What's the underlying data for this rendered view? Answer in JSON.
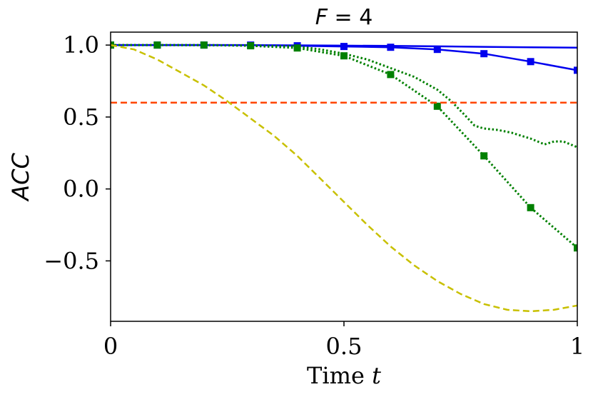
{
  "chart_data": {
    "type": "line",
    "title": "F = 4",
    "title_var": "F",
    "title_eq": " = 4",
    "xlabel": "Time t",
    "xlabel_text": "Time ",
    "xlabel_var": "t",
    "ylabel": "ACC",
    "xlim": [
      0,
      1
    ],
    "ylim": [
      -0.92,
      1.09
    ],
    "xticks": [
      {
        "value": 0,
        "label": "0"
      },
      {
        "value": 0.5,
        "label": "0.5"
      },
      {
        "value": 1,
        "label": "1"
      }
    ],
    "yticks": [
      {
        "value": 1.0,
        "label": "1.0"
      },
      {
        "value": 0.5,
        "label": "0.5"
      },
      {
        "value": 0.0,
        "label": "0.0"
      },
      {
        "value": -0.5,
        "label": "−0.5"
      }
    ],
    "grid": false,
    "series": [
      {
        "name": "blue-solid-upper",
        "color": "#0000ee",
        "style": "solid",
        "markers": false,
        "x": [
          0,
          0.1,
          0.2,
          0.3,
          0.4,
          0.5,
          0.6,
          0.7,
          0.8,
          0.9,
          1.0
        ],
        "y": [
          1.0,
          1.0,
          1.0,
          0.999,
          0.998,
          0.996,
          0.994,
          0.991,
          0.988,
          0.985,
          0.982
        ]
      },
      {
        "name": "blue-solid-squares",
        "color": "#0000ee",
        "style": "solid",
        "markers": true,
        "x": [
          0,
          0.1,
          0.2,
          0.3,
          0.4,
          0.5,
          0.6,
          0.7,
          0.8,
          0.9,
          1.0
        ],
        "y": [
          1.0,
          1.0,
          1.0,
          1.0,
          0.995,
          0.99,
          0.985,
          0.97,
          0.94,
          0.885,
          0.825
        ]
      },
      {
        "name": "green-dotted-squares",
        "color": "#008000",
        "style": "dotted",
        "markers": true,
        "x": [
          0,
          0.1,
          0.2,
          0.3,
          0.4,
          0.5,
          0.6,
          0.7,
          0.8,
          0.9,
          1.0
        ],
        "y": [
          1.0,
          1.0,
          1.0,
          0.995,
          0.98,
          0.925,
          0.795,
          0.575,
          0.23,
          -0.13,
          -0.41
        ]
      },
      {
        "name": "green-dotted-upper",
        "color": "#008000",
        "style": "dotted",
        "markers": false,
        "x": [
          0,
          0.1,
          0.2,
          0.3,
          0.4,
          0.45,
          0.5,
          0.55,
          0.6,
          0.65,
          0.7,
          0.73,
          0.76,
          0.78,
          0.8,
          0.83,
          0.86,
          0.88,
          0.9,
          0.93,
          0.95,
          0.97,
          1.0
        ],
        "y": [
          1.0,
          1.0,
          0.999,
          0.997,
          0.99,
          0.97,
          0.94,
          0.9,
          0.84,
          0.78,
          0.69,
          0.61,
          0.51,
          0.44,
          0.42,
          0.41,
          0.39,
          0.37,
          0.35,
          0.31,
          0.33,
          0.33,
          0.29
        ]
      },
      {
        "name": "orange-dashed-threshold",
        "color": "#ff4500",
        "style": "dashed",
        "markers": false,
        "x": [
          0,
          1.0
        ],
        "y": [
          0.6,
          0.6
        ]
      },
      {
        "name": "yellow-dashed",
        "color": "#c8c000",
        "style": "dashed",
        "markers": false,
        "x": [
          0,
          0.05,
          0.1,
          0.15,
          0.2,
          0.25,
          0.3,
          0.35,
          0.4,
          0.45,
          0.5,
          0.55,
          0.6,
          0.65,
          0.7,
          0.75,
          0.8,
          0.85,
          0.9,
          0.95,
          1.0
        ],
        "y": [
          1.0,
          0.97,
          0.9,
          0.81,
          0.72,
          0.61,
          0.49,
          0.37,
          0.23,
          0.07,
          -0.09,
          -0.25,
          -0.4,
          -0.53,
          -0.64,
          -0.73,
          -0.8,
          -0.84,
          -0.85,
          -0.84,
          -0.81
        ]
      }
    ]
  }
}
